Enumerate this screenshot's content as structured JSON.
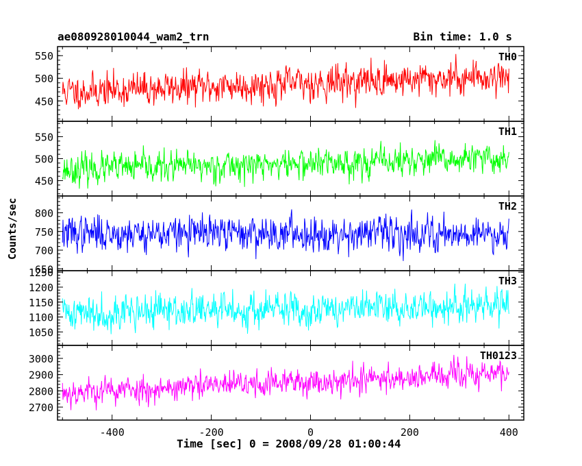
{
  "header": {
    "title": "ae080928010044_wam2_trn",
    "bin_time": "Bin time: 1.0 s"
  },
  "chart_data": {
    "type": "line",
    "xlabel": "Time [sec] 0 = 2008/09/28 01:00:44",
    "ylabel": "Counts/sec",
    "xlim": [
      -510,
      430
    ],
    "x_ticks": [
      -400,
      -200,
      0,
      200,
      400
    ],
    "x_range_data": [
      -500,
      400
    ],
    "panels": [
      {
        "name": "TH0",
        "color": "#ff0000",
        "ylim": [
          405,
          570
        ],
        "y_ticks": [
          450,
          500,
          550
        ],
        "trend": [
          470,
          505
        ],
        "noise": 24,
        "seed": 11
      },
      {
        "name": "TH1",
        "color": "#00ff00",
        "ylim": [
          415,
          585
        ],
        "y_ticks": [
          450,
          500,
          550
        ],
        "trend": [
          475,
          500
        ],
        "noise": 22,
        "seed": 23
      },
      {
        "name": "TH2",
        "color": "#0000ff",
        "ylim": [
          645,
          845
        ],
        "y_ticks": [
          650,
          700,
          750,
          800
        ],
        "trend": [
          745,
          745
        ],
        "noise": 30,
        "seed": 37
      },
      {
        "name": "TH3",
        "color": "#00ffff",
        "ylim": [
          1005,
          1255
        ],
        "y_ticks": [
          1050,
          1100,
          1150,
          1200,
          1250
        ],
        "trend": [
          1115,
          1135
        ],
        "noise": 38,
        "seed": 41
      },
      {
        "name": "TH0123",
        "color": "#ff00ff",
        "ylim": [
          2620,
          3080
        ],
        "y_ticks": [
          2700,
          2800,
          2900,
          3000
        ],
        "trend": [
          2790,
          2910
        ],
        "noise": 55,
        "seed": 53
      }
    ]
  }
}
